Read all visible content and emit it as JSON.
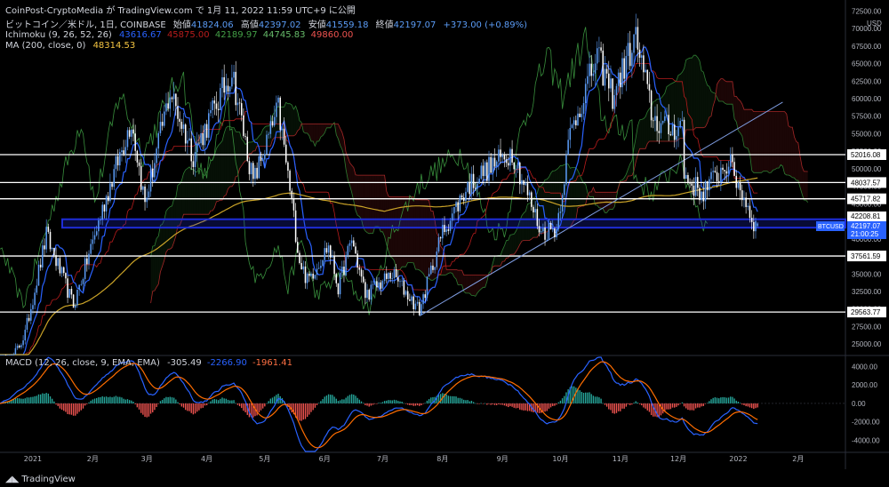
{
  "header": {
    "publisher_line": "CoinPost-CryptoMedia が TradingView.com で 1月 11, 2022 11:59 UTC+9 に公開",
    "symbol_line": "ビットコイン／米ドル, 1日, COINBASE",
    "ohlc": [
      {
        "label": "始値",
        "value": "41824.06"
      },
      {
        "label": "高値",
        "value": "42397.02"
      },
      {
        "label": "安値",
        "value": "41559.18"
      },
      {
        "label": "終値",
        "value": "42197.07"
      }
    ],
    "change": "+373.00 (+0.89%)",
    "ichimoku": {
      "label": "Ichimoku (9, 26, 52, 26)",
      "values": [
        "43616.67",
        "45875.00",
        "42189.97",
        "44745.83",
        "49860.00"
      ]
    },
    "ma": {
      "label": "MA (200, close, 0)",
      "value": "48314.53"
    }
  },
  "footer": {
    "brand": "TradingView"
  },
  "colors": {
    "up": "#5b9cf6",
    "down": "#ffffff",
    "tenkan": "#2962ff",
    "kijun": "#b71c1c",
    "chikou": "#388e3c",
    "span_a": "#2e7d32",
    "span_b": "#a52727",
    "ma": "#c9a227",
    "macd_line": "#2962ff",
    "signal_line": "#ff6d00",
    "hist_up": "#26a69a",
    "hist_down": "#ef5350",
    "band": "#1e2dd8",
    "trend": "#7e9ce0"
  },
  "chart_data": [
    {
      "type": "candlestick",
      "title": "ビットコイン／米ドル, 1日, COINBASE",
      "x_tick_labels": [
        "2021",
        "2月",
        "3月",
        "4月",
        "5月",
        "6月",
        "7月",
        "8月",
        "9月",
        "10月",
        "11月",
        "12月",
        "2022",
        "2月"
      ],
      "xlim": [
        "2020-12-15",
        "2022-02-25"
      ],
      "y_axis_unit": "USD",
      "y_ticks": [
        25000,
        27500,
        30000,
        32500,
        35000,
        37500,
        40000,
        42500,
        45000,
        47500,
        50000,
        52500,
        55000,
        57500,
        60000,
        62500,
        65000,
        67500,
        70000,
        72500
      ],
      "ylim": [
        23500,
        72800
      ],
      "horizontal_levels": [
        52016.08,
        48037.57,
        45717.82,
        37561.59,
        29563.77
      ],
      "highlight_band": {
        "low": 41600,
        "high": 42800
      },
      "labels": {
        "band_level": "42208.81",
        "symbol_tag": "BTCUSD",
        "last_price": "42197.07",
        "countdown": "21:00:25"
      },
      "trendline": [
        {
          "date": "2021-07-20",
          "price": 29000
        },
        {
          "date": "2022-01-24",
          "price": 59500
        }
      ],
      "price_anchors": [
        [
          "2020-12-15",
          19300
        ],
        [
          "2020-12-28",
          26500
        ],
        [
          "2021-01-08",
          40500
        ],
        [
          "2021-01-22",
          30500
        ],
        [
          "2021-02-08",
          46000
        ],
        [
          "2021-02-21",
          57000
        ],
        [
          "2021-02-28",
          45000
        ],
        [
          "2021-03-13",
          61000
        ],
        [
          "2021-03-25",
          52000
        ],
        [
          "2021-04-14",
          64000
        ],
        [
          "2021-04-25",
          48000
        ],
        [
          "2021-05-08",
          58500
        ],
        [
          "2021-05-13",
          49000
        ],
        [
          "2021-05-19",
          37000
        ],
        [
          "2021-05-23",
          34000
        ],
        [
          "2021-06-03",
          39000
        ],
        [
          "2021-06-08",
          33000
        ],
        [
          "2021-06-15",
          40000
        ],
        [
          "2021-06-22",
          32000
        ],
        [
          "2021-07-06",
          35000
        ],
        [
          "2021-07-20",
          29800
        ],
        [
          "2021-08-01",
          41000
        ],
        [
          "2021-08-14",
          47500
        ],
        [
          "2021-08-22",
          49500
        ],
        [
          "2021-09-06",
          52500
        ],
        [
          "2021-09-21",
          41000
        ],
        [
          "2021-09-29",
          41500
        ],
        [
          "2021-10-06",
          55000
        ],
        [
          "2021-10-20",
          66000
        ],
        [
          "2021-10-28",
          60500
        ],
        [
          "2021-11-09",
          68700
        ],
        [
          "2021-11-18",
          57000
        ],
        [
          "2021-11-27",
          55500
        ],
        [
          "2021-12-03",
          56500
        ],
        [
          "2021-12-04",
          49000
        ],
        [
          "2021-12-13",
          46500
        ],
        [
          "2021-12-27",
          51000
        ],
        [
          "2022-01-03",
          46500
        ],
        [
          "2022-01-10",
          41800
        ],
        [
          "2022-01-11",
          42197
        ]
      ],
      "series": [
        {
          "name": "Ichimoku (9, 26, 52, 26)",
          "last_values": [
            43616.67,
            45875.0,
            42189.97,
            44745.83,
            49860.0
          ]
        },
        {
          "name": "MA (200, close, 0)",
          "last_value": 48314.53
        }
      ]
    },
    {
      "type": "macd",
      "label": "MACD (12, 26, close, 9, EMA, EMA)",
      "values": {
        "histogram": "-305.49",
        "macd": "-2266.90",
        "signal": "-1961.41"
      },
      "y_ticks": [
        4000,
        2000,
        0,
        -2000,
        -4000
      ],
      "ylim": [
        -5200,
        5000
      ]
    }
  ]
}
